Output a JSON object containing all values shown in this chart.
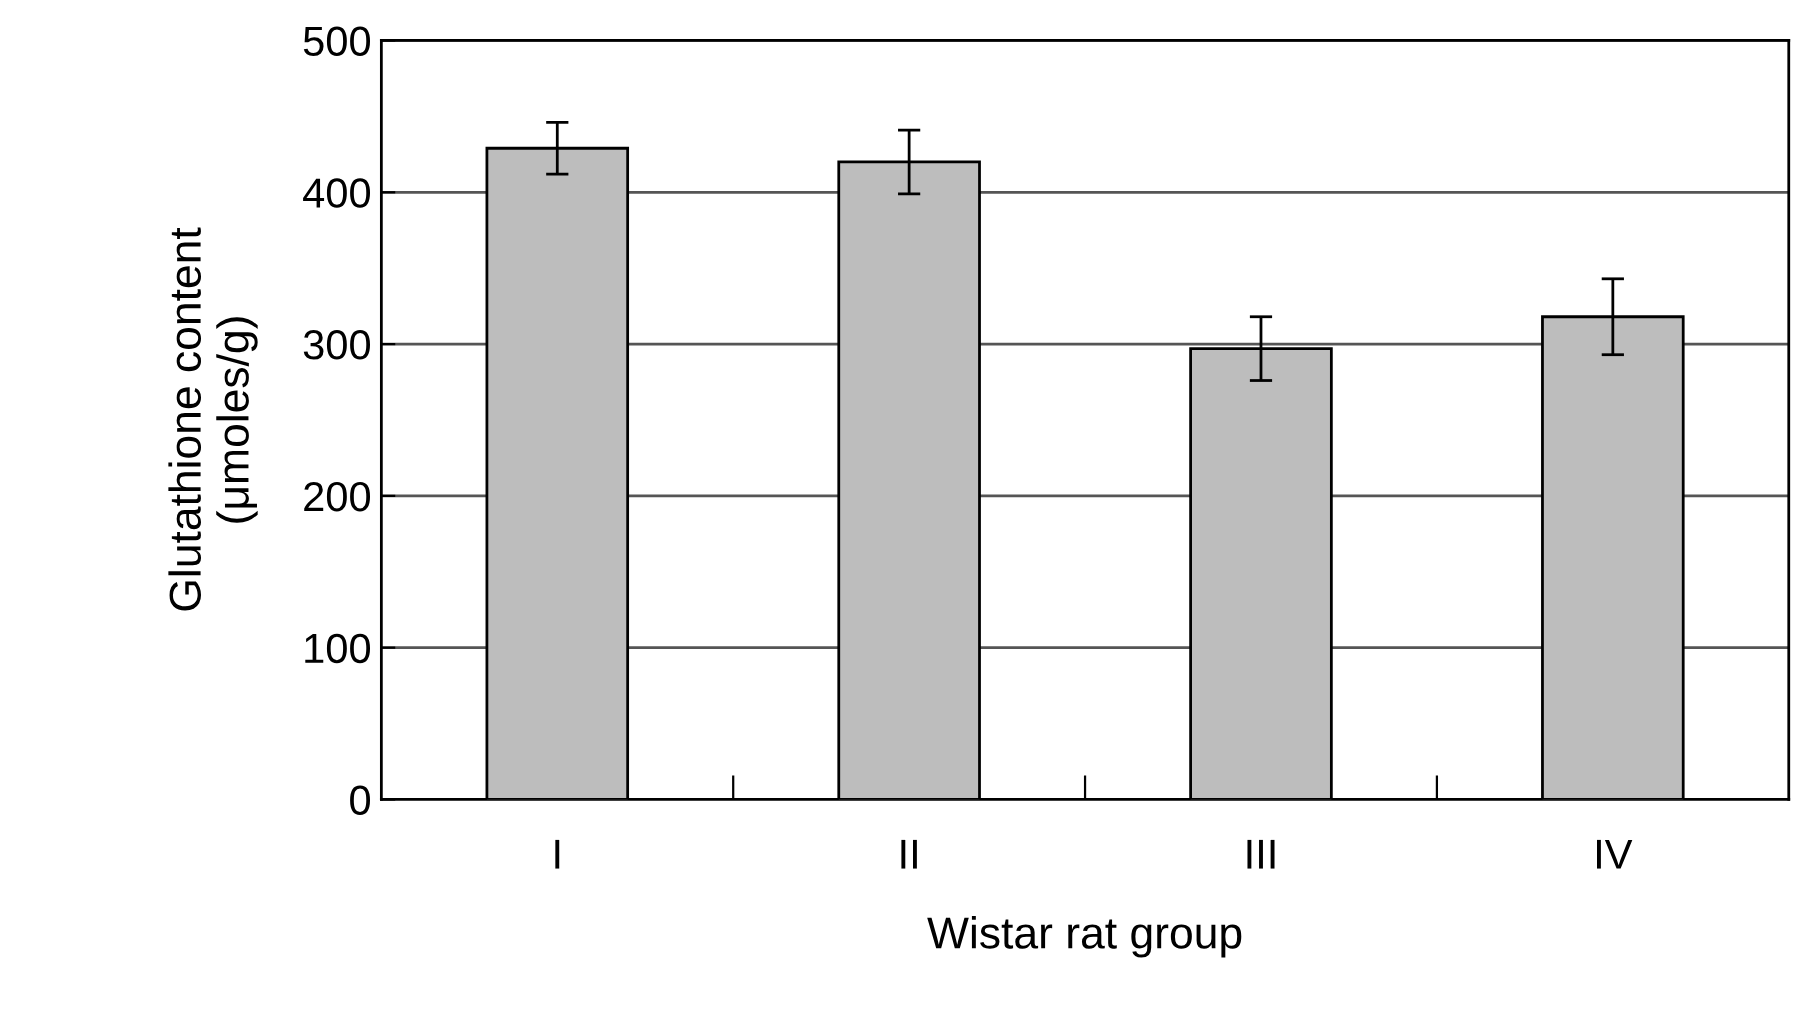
{
  "chart_data": {
    "type": "bar",
    "xlabel": "Wistar rat group",
    "ylabel": "Glutathione content\n(μmoles/g)",
    "categories": [
      "I",
      "II",
      "III",
      "IV"
    ],
    "values": [
      429,
      420,
      297,
      318
    ],
    "errors": [
      17,
      21,
      21,
      25
    ],
    "color": "#bdbdbd",
    "ylim": [
      0,
      500
    ],
    "yticks": [
      0,
      100,
      200,
      300,
      400,
      500
    ],
    "grid": "y",
    "legend": false
  }
}
